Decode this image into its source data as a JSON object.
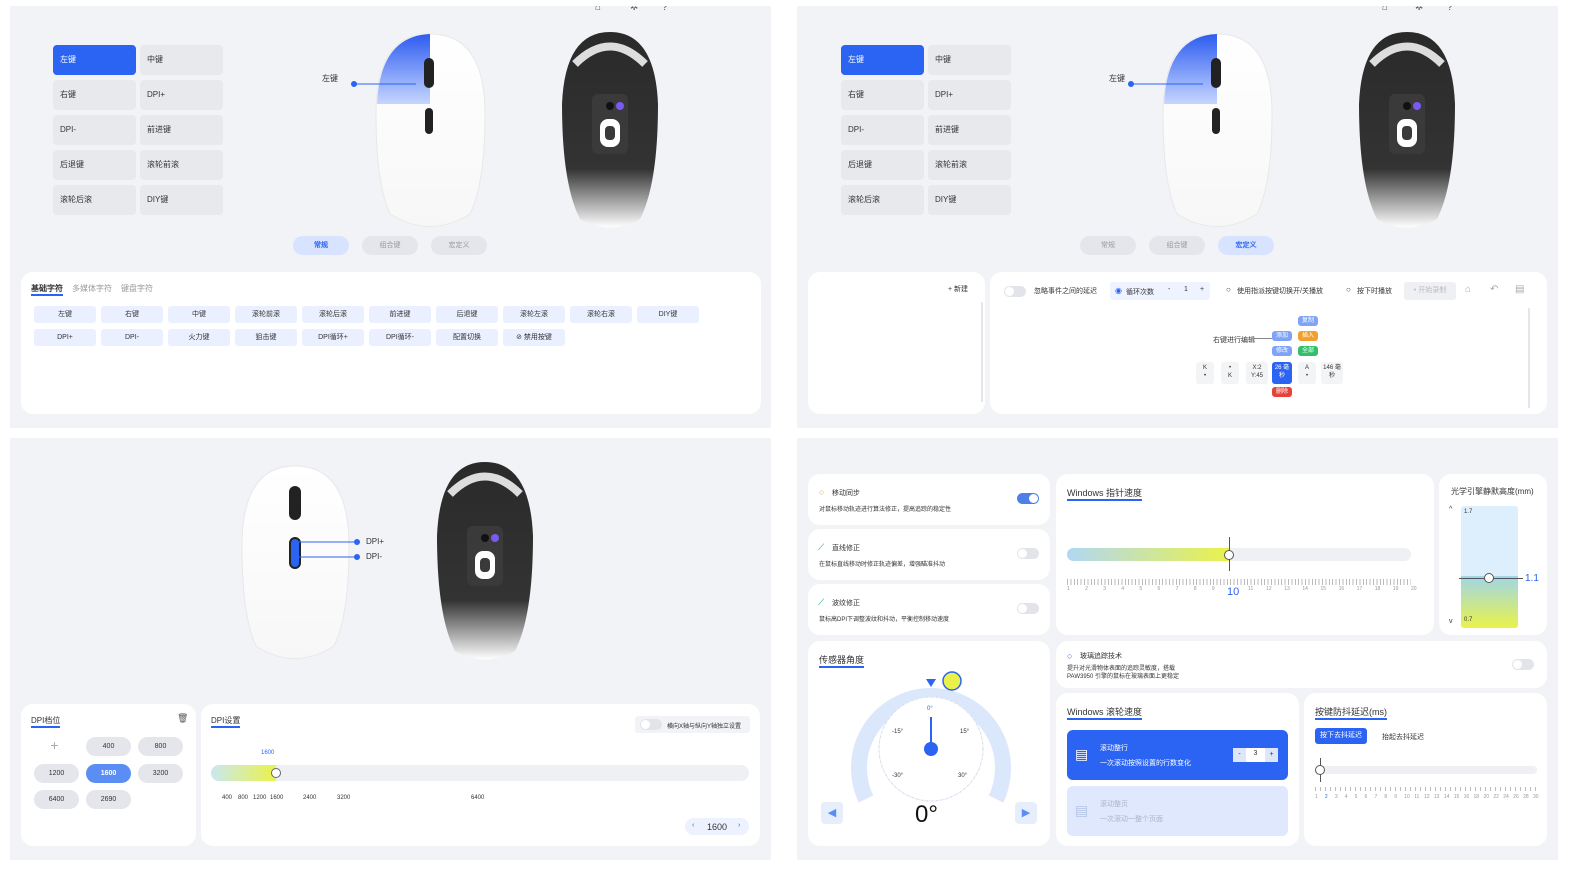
{
  "p1": {
    "buttons": [
      "左键",
      "中键",
      "右键",
      "DPI+",
      "DPI-",
      "前进键",
      "后退键",
      "滚轮前滚",
      "滚轮后滚",
      "DIY键"
    ],
    "callout": "左键",
    "modes": [
      "常规",
      "组合键",
      "宏定义"
    ],
    "tabs": [
      "基础字符",
      "多媒体字符",
      "键盘字符"
    ],
    "row1": [
      "左键",
      "右键",
      "中键",
      "滚轮前滚",
      "滚轮后滚",
      "前进键",
      "后退键",
      "滚轮左滚",
      "滚轮右滚",
      "DIY键"
    ],
    "row2": [
      "DPI+",
      "DPI-",
      "火力键",
      "狙击键",
      "DPI循环+",
      "DPI循环-",
      "配置切换",
      "禁用按键"
    ]
  },
  "p2": {
    "buttons": [
      "左键",
      "中键",
      "右键",
      "DPI+",
      "DPI-",
      "前进键",
      "后退键",
      "滚轮前滚",
      "滚轮后滚",
      "DIY键"
    ],
    "callout": "左键",
    "modes": [
      "常规",
      "组合键",
      "宏定义"
    ],
    "new_label": "+ 新建",
    "opt_ignore": "忽略事件之间的延迟",
    "opt_loop": "循环次数",
    "loop_minus": "-",
    "loop_count": "1",
    "loop_plus": "+",
    "opt_toggle": "使用指派按键切换开/关播放",
    "opt_hold": "按下时播放",
    "record": "• 开始录制",
    "editing": "右键进行编辑",
    "ctx": {
      "copy": "复制",
      "add": "添加",
      "insert": "插入",
      "modify": "修改",
      "all": "全部",
      "delete": "删除"
    },
    "keys": [
      "K",
      "K",
      "X:2 Y:45",
      "26 毫秒",
      "A",
      "146 毫秒"
    ]
  },
  "p3": {
    "labels": [
      "DPI+",
      "DPI-"
    ],
    "dpi_tier_title": "DPI档位",
    "tiers": [
      "400",
      "800",
      "1200",
      "1600",
      "3200",
      "6400",
      "2690"
    ],
    "selected_tier": "1600",
    "dpi_set_title": "DPI设置",
    "xy_toggle": "横向X轴与纵向Y轴独立设置",
    "slider_value": "1600",
    "ticks": [
      "400",
      "800",
      "1200",
      "1600",
      "2400",
      "3200",
      "6400"
    ],
    "stepper": "1600",
    "slider_fraction": 0.12
  },
  "p4": {
    "motion_sync": {
      "title": "移动同步",
      "desc": "对鼠标移动轨迹进行算法修正，提高追踪的稳定性"
    },
    "angle_snap": {
      "title": "直线修正",
      "desc": "在鼠标直线移动时修正轨迹偏差，增强瞄准抖动"
    },
    "ripple": {
      "title": "波纹修正",
      "desc": "鼠标高DPI下调整波纹和抖动，平衡控制移动速度"
    },
    "pointer_speed": {
      "title": "Windows 指针速度",
      "value": "10",
      "ticks": [
        "1",
        "2",
        "3",
        "4",
        "5",
        "6",
        "7",
        "8",
        "9",
        "10",
        "11",
        "12",
        "13",
        "14",
        "15",
        "16",
        "17",
        "18",
        "19",
        "20"
      ]
    },
    "lod": {
      "title": "光学引擎静默高度(mm)",
      "top": "1.7",
      "bottom": "0.7",
      "value": "1.1"
    },
    "sensor_angle": {
      "title": "传感器角度",
      "value": "0°",
      "marks": [
        "0°",
        "-15°",
        "15°",
        "-30°",
        "30°"
      ]
    },
    "glass": {
      "title": "玻璃追踪技术",
      "desc": "提升对光滑物体表面的追踪灵敏度，搭载 PAW3950 引擎的鼠标在玻璃表面上更稳定"
    },
    "scroll": {
      "title": "Windows 滚轮速度",
      "opt1_title": "滚动整行",
      "opt1_desc": "一次滚动按照设置的行数变化",
      "opt1_value": "3",
      "opt2_title": "滚动整页",
      "opt2_desc": "一次滚动一整个页面"
    },
    "debounce": {
      "title": "按键防抖延迟(ms)",
      "opt1": "按下去抖延迟",
      "opt2": "抬起去抖延迟",
      "ticks": [
        "1",
        "2",
        "3",
        "4",
        "5",
        "6",
        "7",
        "8",
        "9",
        "10",
        "11",
        "12",
        "13",
        "14",
        "15",
        "16",
        "18",
        "20",
        "22",
        "24",
        "26",
        "28",
        "30"
      ]
    }
  },
  "colors": {
    "accent": "#2b63f2",
    "yellow": "#e9f24a",
    "panel": "#f2f3f7"
  }
}
